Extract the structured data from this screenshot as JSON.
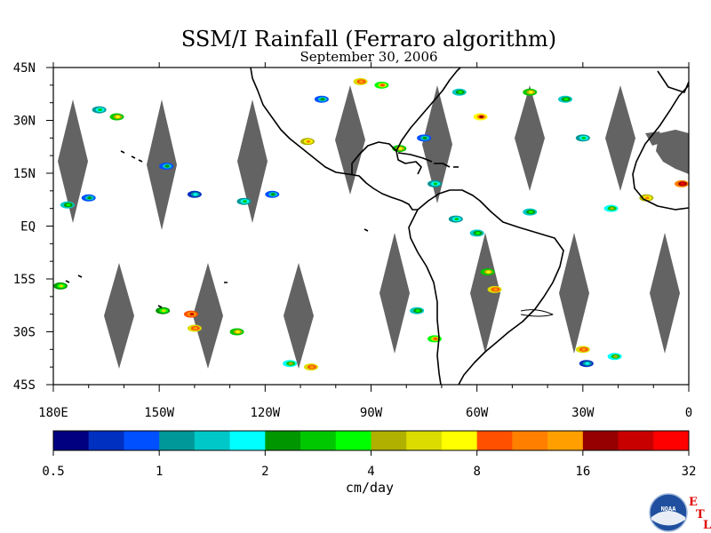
{
  "chart_data": {
    "type": "heatmap",
    "title": "SSM/I Rainfall (Ferraro algorithm)",
    "subtitle": "September 30, 2006",
    "x_tick_labels": [
      "180E",
      "150W",
      "120W",
      "90W",
      "60W",
      "30W",
      "0"
    ],
    "y_tick_labels": [
      "45N",
      "30N",
      "15N",
      "EQ",
      "15S",
      "30S",
      "45S"
    ],
    "x_ticks_deg": [
      -180,
      -150,
      -120,
      -90,
      -60,
      -30,
      0
    ],
    "y_ticks_deg": [
      45,
      30,
      15,
      0,
      -15,
      -30,
      -45
    ],
    "xlim": [
      -180,
      0
    ],
    "ylim": [
      -45,
      45
    ],
    "colorbar": {
      "label": "cm/day",
      "tick_labels": [
        "0.5",
        "1",
        "2",
        "4",
        "8",
        "16",
        "32"
      ],
      "colors": [
        "#000080",
        "#0030c0",
        "#0050ff",
        "#009898",
        "#00c8c8",
        "#00ffff",
        "#009600",
        "#00c800",
        "#00ff00",
        "#b0b000",
        "#dcdc00",
        "#ffff00",
        "#ff5000",
        "#ff8000",
        "#ffa000",
        "#960000",
        "#c80000",
        "#ff0000"
      ]
    },
    "no_data_color": "#636363",
    "rain_cells": [
      {
        "lon": -167,
        "lat": 33,
        "level": 7
      },
      {
        "lon": -162,
        "lat": 31,
        "level": 11
      },
      {
        "lon": -176,
        "lat": 6,
        "level": 8
      },
      {
        "lon": -170,
        "lat": 8,
        "level": 6
      },
      {
        "lon": -148,
        "lat": 17,
        "level": 6
      },
      {
        "lon": -140,
        "lat": 9,
        "level": 5
      },
      {
        "lon": -126,
        "lat": 7,
        "level": 7
      },
      {
        "lon": -118,
        "lat": 9,
        "level": 6
      },
      {
        "lon": -108,
        "lat": 24,
        "level": 13
      },
      {
        "lon": -104,
        "lat": 36,
        "level": 6
      },
      {
        "lon": -93,
        "lat": 41,
        "level": 14
      },
      {
        "lon": -87,
        "lat": 40,
        "level": 12
      },
      {
        "lon": -82,
        "lat": 22,
        "level": 11
      },
      {
        "lon": -75,
        "lat": 25,
        "level": 6
      },
      {
        "lon": -72,
        "lat": 12,
        "level": 7
      },
      {
        "lon": -65,
        "lat": 38,
        "level": 8
      },
      {
        "lon": -59,
        "lat": 31,
        "level": 15
      },
      {
        "lon": -45,
        "lat": 38,
        "level": 11
      },
      {
        "lon": -35,
        "lat": 36,
        "level": 8
      },
      {
        "lon": -30,
        "lat": 25,
        "level": 7
      },
      {
        "lon": -2,
        "lat": 12,
        "level": 17
      },
      {
        "lon": -12,
        "lat": 8,
        "level": 13
      },
      {
        "lon": -22,
        "lat": 5,
        "level": 9
      },
      {
        "lon": -45,
        "lat": 4,
        "level": 8
      },
      {
        "lon": -60,
        "lat": -2,
        "level": 8
      },
      {
        "lon": -66,
        "lat": 2,
        "level": 7
      },
      {
        "lon": -178,
        "lat": -17,
        "level": 10
      },
      {
        "lon": -149,
        "lat": -24,
        "level": 10
      },
      {
        "lon": -141,
        "lat": -25,
        "level": 16
      },
      {
        "lon": -140,
        "lat": -29,
        "level": 14
      },
      {
        "lon": -128,
        "lat": -30,
        "level": 11
      },
      {
        "lon": -113,
        "lat": -39,
        "level": 9
      },
      {
        "lon": -107,
        "lat": -40,
        "level": 14
      },
      {
        "lon": -72,
        "lat": -32,
        "level": 12
      },
      {
        "lon": -77,
        "lat": -24,
        "level": 8
      },
      {
        "lon": -55,
        "lat": -18,
        "level": 14
      },
      {
        "lon": -57,
        "lat": -13,
        "level": 11
      },
      {
        "lon": -30,
        "lat": -35,
        "level": 14
      },
      {
        "lon": -29,
        "lat": -39,
        "level": 5
      },
      {
        "lon": -21,
        "lat": -37,
        "level": 9
      }
    ]
  },
  "logo": {
    "noaa_text": "NOAA",
    "etl_letters": [
      "E",
      "T",
      "L"
    ]
  }
}
